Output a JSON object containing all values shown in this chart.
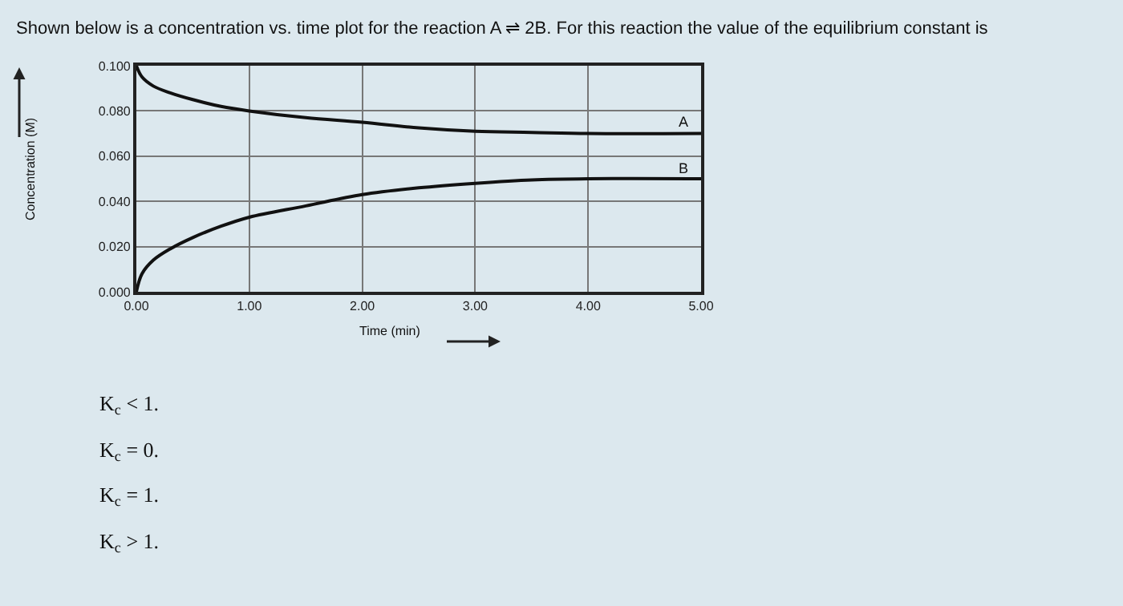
{
  "chart_data": {
    "type": "line",
    "title": "Shown below is a concentration vs. time plot for the reaction A ⇌ 2B. For this reaction the value of the equilibrium constant is",
    "xlabel": "Time (min)",
    "ylabel": "Concentration (M)",
    "series": [
      {
        "color": "#111111",
        "x": [
          0,
          0.05,
          0.15,
          0.3,
          0.5,
          0.75,
          1.0,
          1.5,
          2.0,
          2.5,
          3.0,
          3.5,
          4.0,
          5.0
        ],
        "values": [
          0.1,
          0.095,
          0.091,
          0.088,
          0.085,
          0.082,
          0.08,
          0.077,
          0.075,
          0.0725,
          0.071,
          0.0705,
          0.07,
          0.07
        ]
      },
      {
        "color": "#111111",
        "x": [
          0,
          0.05,
          0.15,
          0.3,
          0.5,
          0.75,
          1.0,
          1.5,
          2.0,
          2.5,
          3.0,
          3.5,
          4.0,
          5.0
        ],
        "values": [
          0.0,
          0.008,
          0.014,
          0.019,
          0.024,
          0.029,
          0.033,
          0.038,
          0.043,
          0.046,
          0.048,
          0.0495,
          0.05,
          0.05
        ]
      }
    ],
    "xlim": [
      0,
      5
    ],
    "xticks": [
      {
        "value": 0,
        "label": "0.00"
      },
      {
        "value": 1,
        "label": "1.00"
      },
      {
        "value": 2,
        "label": "2.00"
      },
      {
        "value": 3,
        "label": "3.00"
      },
      {
        "value": 4,
        "label": "4.00"
      },
      {
        "value": 5,
        "label": "5.00"
      }
    ],
    "ylim": [
      0,
      0.1
    ],
    "yticks": [
      {
        "value": 0,
        "label": "0.000"
      },
      {
        "value": 0.02,
        "label": "0.020"
      },
      {
        "value": 0.04,
        "label": "0.040"
      },
      {
        "value": 0.06,
        "label": "0.060"
      },
      {
        "value": 0.08,
        "label": "0.080"
      },
      {
        "value": 0.1,
        "label": "0.100"
      }
    ],
    "grid": true,
    "legend": false,
    "marker": "none",
    "line_style": "solid",
    "annotations": [
      {
        "text": "A",
        "x": 4.85,
        "y": 0.07
      },
      {
        "text": "B",
        "x": 4.85,
        "y": 0.05
      },
      "K$_{c}$ < 1.",
      "K$_{c}$ = 0.",
      "K$_{c}$ = 1.",
      "K$_{c}$ > 1."
    ]
  }
}
